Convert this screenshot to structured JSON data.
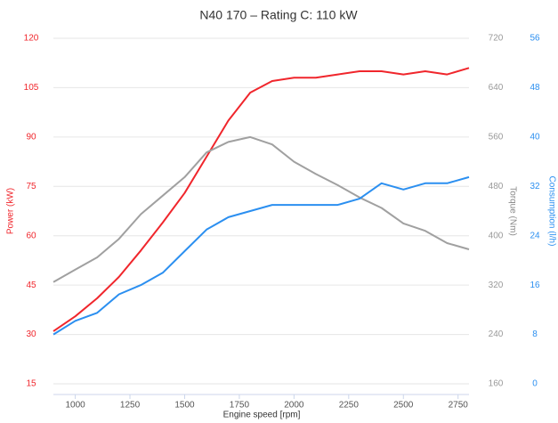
{
  "chart_data": {
    "type": "line",
    "title": "N40 170 – Rating C: 110 kW",
    "xlabel": "Engine speed [rpm]",
    "ylabel": "Power (kW)",
    "y2label": "Torque (Nm)",
    "y3label": "Consumption (l/h)",
    "x": [
      900,
      1000,
      1100,
      1200,
      1300,
      1400,
      1500,
      1600,
      1700,
      1800,
      1900,
      2000,
      2100,
      2200,
      2300,
      2400,
      2500,
      2600,
      2700,
      2800
    ],
    "xlim": [
      900,
      2800
    ],
    "xticks": [
      1000,
      1250,
      1500,
      1750,
      2000,
      2250,
      2500,
      2750
    ],
    "ylim": [
      15,
      120
    ],
    "yticks": [
      15,
      30,
      45,
      60,
      75,
      90,
      105,
      120
    ],
    "y2lim": [
      160,
      720
    ],
    "y2ticks": [
      160,
      240,
      320,
      400,
      480,
      560,
      640,
      720
    ],
    "y3lim": [
      0,
      56
    ],
    "y3ticks": [
      0,
      8,
      16,
      24,
      32,
      40,
      48,
      56
    ],
    "grid": true,
    "series": [
      {
        "name": "Power",
        "color": "#f0262c",
        "axis": "y",
        "values": [
          31,
          35.5,
          41,
          47.5,
          55.5,
          64,
          73,
          84,
          95,
          103.5,
          107,
          108,
          108,
          109,
          110,
          110,
          109,
          110,
          109,
          111
        ]
      },
      {
        "name": "Torque",
        "color": "#a0a0a0",
        "axis": "y2",
        "values": [
          325,
          345,
          365,
          395,
          435,
          465,
          495,
          535,
          552,
          560,
          548,
          520,
          500,
          482,
          462,
          445,
          420,
          408,
          388,
          378
        ]
      },
      {
        "name": "Consumption",
        "color": "#2b8ff0",
        "axis": "y3",
        "values": [
          8,
          10.2,
          11.5,
          14.5,
          16,
          18,
          21.5,
          25,
          27,
          28,
          29,
          29,
          29,
          29,
          30,
          32.5,
          31.5,
          32.5,
          32.5,
          33.5
        ]
      }
    ]
  }
}
